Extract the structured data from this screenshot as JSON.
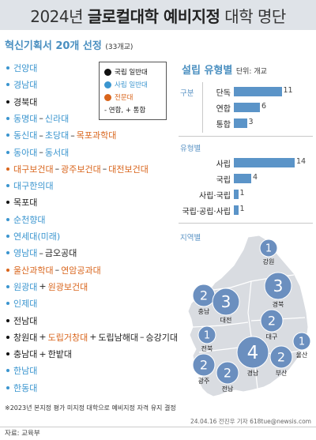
{
  "header": {
    "year_prefix": "2024년 ",
    "title_bold": "글로컬대학 예비지정",
    "title_suffix": " 대학 명단"
  },
  "subheading": {
    "text": "혁신기획서 20개 선정",
    "count_note": "(33개교)"
  },
  "legend": {
    "items": [
      {
        "label": "국립 일반대",
        "color": "#111111",
        "shape": "dot"
      },
      {
        "label": "사립 일반대",
        "color": "#3a95cf",
        "shape": "dot"
      },
      {
        "label": "전문대",
        "color": "#d9651c",
        "shape": "dot"
      },
      {
        "label": "- 연합, + 통합",
        "color": "#222222",
        "shape": "text"
      }
    ]
  },
  "universities": [
    {
      "parts": [
        {
          "text": "건양대",
          "type": "s"
        }
      ]
    },
    {
      "parts": [
        {
          "text": "경남대",
          "type": "s"
        }
      ]
    },
    {
      "parts": [
        {
          "text": "경북대",
          "type": "b"
        }
      ]
    },
    {
      "parts": [
        {
          "text": "동명대",
          "type": "s"
        },
        {
          "sep": "–"
        },
        {
          "text": "신라대",
          "type": "s"
        }
      ]
    },
    {
      "parts": [
        {
          "text": "동신대",
          "type": "s"
        },
        {
          "sep": "–"
        },
        {
          "text": "초당대",
          "type": "s"
        },
        {
          "sep": "–"
        },
        {
          "text": "목포과학대",
          "type": "o"
        }
      ]
    },
    {
      "parts": [
        {
          "text": "동아대",
          "type": "s"
        },
        {
          "sep": "–"
        },
        {
          "text": "동서대",
          "type": "s"
        }
      ]
    },
    {
      "parts": [
        {
          "text": "대구보건대",
          "type": "o"
        },
        {
          "sep": "–"
        },
        {
          "text": "광주보건대",
          "type": "o"
        },
        {
          "sep": "–"
        },
        {
          "text": "대전보건대",
          "type": "o"
        }
      ]
    },
    {
      "parts": [
        {
          "text": "대구한의대",
          "type": "s"
        }
      ]
    },
    {
      "parts": [
        {
          "text": "목포대",
          "type": "b"
        }
      ]
    },
    {
      "parts": [
        {
          "text": "순천향대",
          "type": "s"
        }
      ]
    },
    {
      "parts": [
        {
          "text": "연세대(미래)",
          "type": "s"
        }
      ]
    },
    {
      "parts": [
        {
          "text": "영남대",
          "type": "s"
        },
        {
          "sep": "–"
        },
        {
          "text": "금오공대",
          "type": "b"
        }
      ]
    },
    {
      "parts": [
        {
          "text": "울산과학대",
          "type": "o"
        },
        {
          "sep": "–"
        },
        {
          "text": "연암공과대",
          "type": "o"
        }
      ]
    },
    {
      "parts": [
        {
          "text": "원광대",
          "type": "s"
        },
        {
          "sep": "+"
        },
        {
          "text": "원광보건대",
          "type": "o"
        }
      ]
    },
    {
      "parts": [
        {
          "text": "인제대",
          "type": "s"
        }
      ]
    },
    {
      "parts": [
        {
          "text": "전남대",
          "type": "b"
        }
      ]
    },
    {
      "parts": [
        {
          "text": "창원대",
          "type": "b"
        },
        {
          "sep": "+"
        },
        {
          "text": "도립거창대",
          "type": "o"
        },
        {
          "sep": "+"
        },
        {
          "text": "도립남해대",
          "type": "b"
        },
        {
          "sep": "–"
        },
        {
          "text": "승강기대",
          "type": "b"
        }
      ]
    },
    {
      "parts": [
        {
          "text": "충남대",
          "type": "b"
        },
        {
          "sep": "+"
        },
        {
          "text": "한밭대",
          "type": "b"
        }
      ]
    },
    {
      "parts": [
        {
          "text": "한남대",
          "type": "s"
        }
      ]
    },
    {
      "parts": [
        {
          "text": "한동대",
          "type": "s"
        }
      ]
    }
  ],
  "panel": {
    "title": "설립 유형별",
    "unit": "단위: 개교",
    "section_type": "구분",
    "section_found": "유형별",
    "section_region": "지역별"
  },
  "chart_data": [
    {
      "type": "bar",
      "title": "구분",
      "categories": [
        "단독",
        "연합",
        "통합"
      ],
      "values": [
        11,
        6,
        3
      ]
    },
    {
      "type": "bar",
      "title": "유형별",
      "categories": [
        "사립",
        "국립",
        "사립·국립",
        "국립·공립·사립"
      ],
      "values": [
        14,
        4,
        1,
        1
      ]
    },
    {
      "type": "map",
      "title": "지역별",
      "regions": [
        {
          "name": "강원",
          "value": 1
        },
        {
          "name": "충남",
          "value": 2
        },
        {
          "name": "대전",
          "value": 3
        },
        {
          "name": "경북",
          "value": 3
        },
        {
          "name": "대구",
          "value": 2
        },
        {
          "name": "전북",
          "value": 1
        },
        {
          "name": "울산",
          "value": 1
        },
        {
          "name": "경남",
          "value": 4
        },
        {
          "name": "부산",
          "value": 2
        },
        {
          "name": "광주",
          "value": 2
        },
        {
          "name": "전남",
          "value": 2
        }
      ]
    }
  ],
  "footnote": "※2023년 본지정 평가 미지정 대학으로 예비지정 자격 유지 결정",
  "credit": "24.04.16 전진우 기자 618tue@newsis.com",
  "source": "자료: 교육부",
  "colors": {
    "bar": "#5b94c8",
    "bubble": "#6b8fbf",
    "map_land": "#d9dce1",
    "title_bar": "#dfe3e8"
  }
}
